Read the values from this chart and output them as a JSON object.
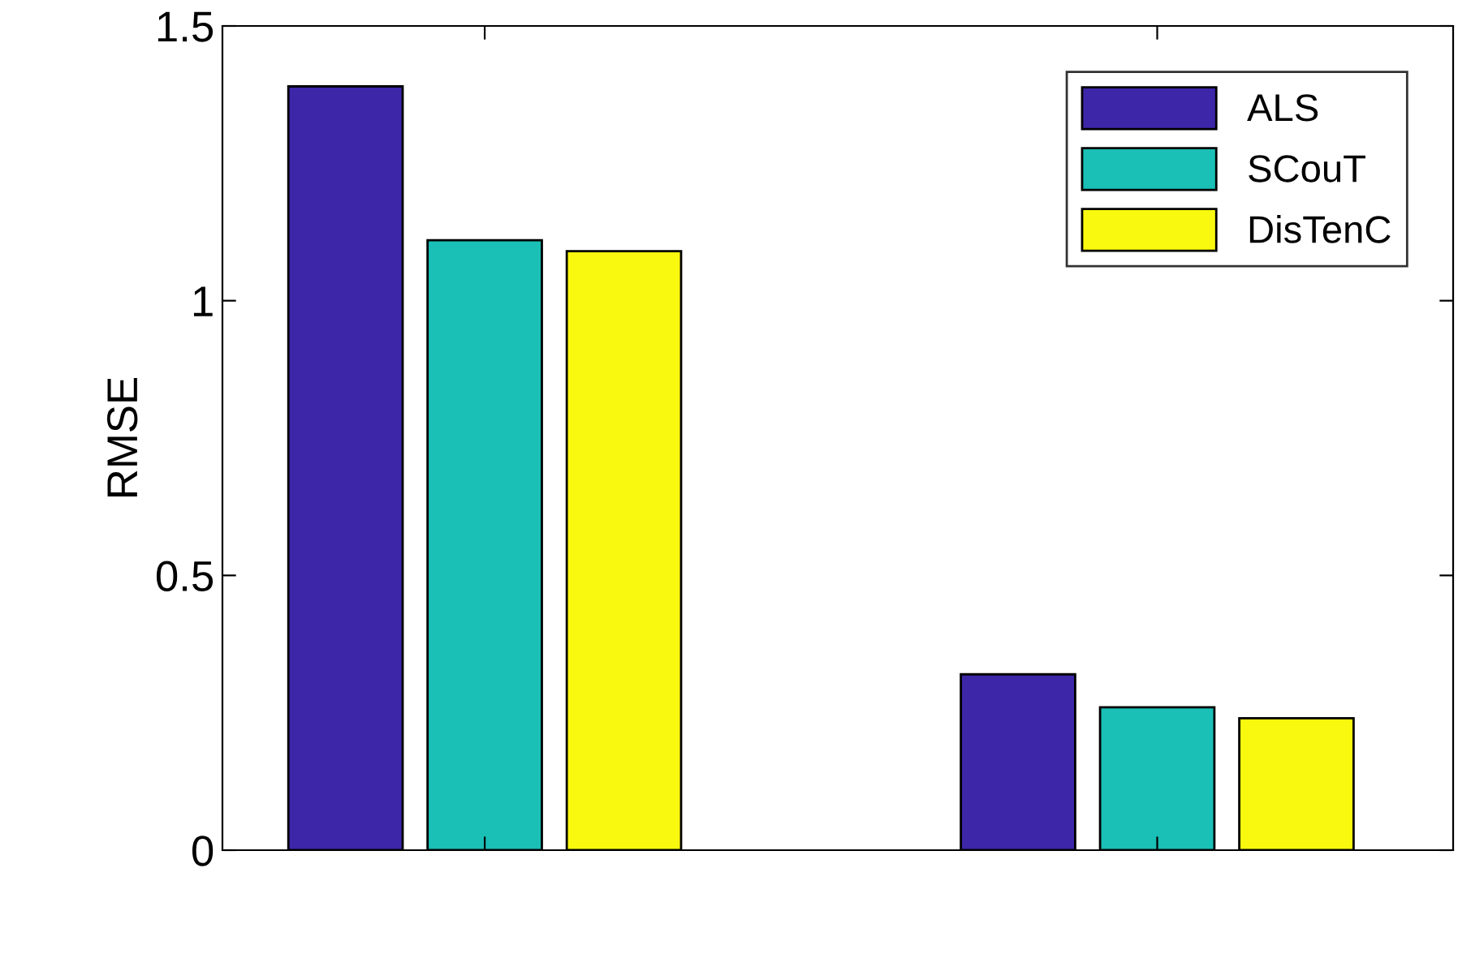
{
  "chart_data": {
    "type": "bar",
    "ylabel": "RMSE",
    "categories": [
      null,
      null
    ],
    "series": [
      {
        "name": "ALS",
        "color": "#3d26a8",
        "values": [
          1.39,
          0.32
        ]
      },
      {
        "name": "SCouT",
        "color": "#1abfb6",
        "values": [
          1.11,
          0.26
        ]
      },
      {
        "name": "DisTenC",
        "color": "#f9f90f",
        "values": [
          1.09,
          0.24
        ]
      }
    ],
    "ylim": [
      0,
      1.5
    ],
    "yticks": [
      0,
      0.5,
      1,
      1.5
    ],
    "grid": false,
    "legend": "top right"
  }
}
